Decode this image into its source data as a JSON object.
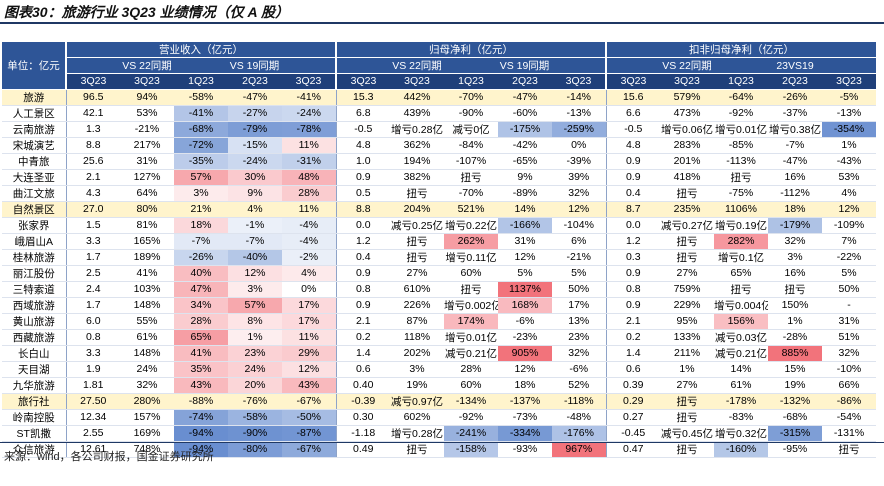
{
  "title": "图表30：旅游行业 3Q23 业绩情况（仅 A 股）",
  "header": {
    "unit": "单位：亿元",
    "groups": [
      "营业收入（亿元）",
      "归母净利（亿元）",
      "扣非归母净利（亿元）"
    ],
    "sub": [
      [
        "VS 22同期",
        "VS 19同期"
      ],
      [
        "VS 22同期",
        "VS 19同期"
      ],
      [
        "VS 22同期",
        "23VS19"
      ]
    ],
    "periods": [
      "3Q23",
      "3Q23",
      "1Q23",
      "2Q23",
      "3Q23",
      "3Q23",
      "3Q23",
      "1Q23",
      "2Q23",
      "3Q23",
      "3Q23",
      "3Q23",
      "1Q23",
      "2Q23",
      "3Q23"
    ]
  },
  "table": {
    "rows": [
      [
        "旅游",
        "96.5",
        "94%",
        "-58%",
        "-47%",
        "-41%",
        "15.3",
        "442%",
        "-70%",
        "-47%",
        "-14%",
        "15.6",
        "579%",
        "-64%",
        "-26%",
        "-5%"
      ],
      [
        "人工景区",
        "42.1",
        "53%",
        "-41%",
        "-27%",
        "-24%",
        "6.8",
        "439%",
        "-90%",
        "-60%",
        "-13%",
        "6.6",
        "473%",
        "-92%",
        "-37%",
        "-13%"
      ],
      [
        "云南旅游",
        "1.3",
        "-21%",
        "-68%",
        "-79%",
        "-78%",
        "-0.5",
        "增亏0.28亿",
        "减亏0亿",
        "-175%",
        "-259%",
        "-0.5",
        "增亏0.06亿",
        "增亏0.01亿",
        "增亏0.38亿",
        "-354%"
      ],
      [
        "宋城演艺",
        "8.8",
        "217%",
        "-72%",
        "-15%",
        "11%",
        "4.8",
        "362%",
        "-84%",
        "-42%",
        "0%",
        "4.8",
        "283%",
        "-85%",
        "-7%",
        "1%"
      ],
      [
        "中青旅",
        "25.6",
        "31%",
        "-35%",
        "-24%",
        "-31%",
        "1.0",
        "194%",
        "-107%",
        "-65%",
        "-39%",
        "0.9",
        "201%",
        "-113%",
        "-47%",
        "-43%"
      ],
      [
        "大连圣亚",
        "2.1",
        "127%",
        "57%",
        "30%",
        "48%",
        "0.9",
        "382%",
        "扭亏",
        "9%",
        "39%",
        "0.9",
        "418%",
        "扭亏",
        "16%",
        "53%"
      ],
      [
        "曲江文旅",
        "4.3",
        "64%",
        "3%",
        "9%",
        "28%",
        "0.5",
        "扭亏",
        "-70%",
        "-89%",
        "32%",
        "0.4",
        "扭亏",
        "-75%",
        "-112%",
        "4%"
      ],
      [
        "自然景区",
        "27.0",
        "80%",
        "21%",
        "4%",
        "11%",
        "8.8",
        "204%",
        "521%",
        "14%",
        "12%",
        "8.7",
        "235%",
        "1106%",
        "18%",
        "12%"
      ],
      [
        "张家界",
        "1.5",
        "81%",
        "18%",
        "-1%",
        "-4%",
        "0.0",
        "减亏0.25亿",
        "增亏0.22亿",
        "-166%",
        "-104%",
        "0.0",
        "减亏0.27亿",
        "增亏0.19亿",
        "-179%",
        "-109%"
      ],
      [
        "峨眉山A",
        "3.3",
        "165%",
        "-7%",
        "-7%",
        "-4%",
        "1.2",
        "扭亏",
        "262%",
        "31%",
        "6%",
        "1.2",
        "扭亏",
        "282%",
        "32%",
        "7%"
      ],
      [
        "桂林旅游",
        "1.7",
        "189%",
        "-26%",
        "-40%",
        "-2%",
        "0.4",
        "扭亏",
        "增亏0.11亿",
        "12%",
        "-21%",
        "0.3",
        "扭亏",
        "增亏0.1亿",
        "3%",
        "-22%"
      ],
      [
        "丽江股份",
        "2.5",
        "41%",
        "40%",
        "12%",
        "4%",
        "0.9",
        "27%",
        "60%",
        "5%",
        "5%",
        "0.9",
        "27%",
        "65%",
        "16%",
        "5%"
      ],
      [
        "三特索道",
        "2.4",
        "103%",
        "47%",
        "3%",
        "0%",
        "0.8",
        "610%",
        "扭亏",
        "1137%",
        "50%",
        "0.8",
        "759%",
        "扭亏",
        "扭亏",
        "50%"
      ],
      [
        "西域旅游",
        "1.7",
        "148%",
        "34%",
        "57%",
        "17%",
        "0.9",
        "226%",
        "增亏0.002亿",
        "168%",
        "17%",
        "0.9",
        "229%",
        "增亏0.004亿",
        "150%",
        "-"
      ],
      [
        "黄山旅游",
        "6.0",
        "55%",
        "28%",
        "8%",
        "17%",
        "2.1",
        "87%",
        "174%",
        "-6%",
        "13%",
        "2.1",
        "95%",
        "156%",
        "1%",
        "31%"
      ],
      [
        "西藏旅游",
        "0.8",
        "61%",
        "65%",
        "1%",
        "11%",
        "0.2",
        "118%",
        "增亏0.01亿",
        "-23%",
        "23%",
        "0.2",
        "133%",
        "减亏0.03亿",
        "-28%",
        "51%"
      ],
      [
        "长白山",
        "3.3",
        "148%",
        "41%",
        "23%",
        "29%",
        "1.4",
        "202%",
        "减亏0.21亿",
        "905%",
        "32%",
        "1.4",
        "211%",
        "减亏0.21亿",
        "885%",
        "32%"
      ],
      [
        "天目湖",
        "1.9",
        "24%",
        "35%",
        "24%",
        "12%",
        "0.6",
        "3%",
        "28%",
        "12%",
        "-6%",
        "0.6",
        "1%",
        "14%",
        "15%",
        "-10%"
      ],
      [
        "九华旅游",
        "1.81",
        "32%",
        "43%",
        "20%",
        "43%",
        "0.40",
        "19%",
        "60%",
        "18%",
        "52%",
        "0.39",
        "27%",
        "61%",
        "19%",
        "66%"
      ],
      [
        "旅行社",
        "27.50",
        "280%",
        "-88%",
        "-76%",
        "-67%",
        "-0.39",
        "减亏0.97亿",
        "-134%",
        "-137%",
        "-118%",
        "0.29",
        "扭亏",
        "-178%",
        "-132%",
        "-86%"
      ],
      [
        "岭南控股",
        "12.34",
        "157%",
        "-74%",
        "-58%",
        "-50%",
        "0.30",
        "602%",
        "-92%",
        "-73%",
        "-48%",
        "0.27",
        "扭亏",
        "-83%",
        "-68%",
        "-54%"
      ],
      [
        "ST凯撒",
        "2.55",
        "169%",
        "-94%",
        "-90%",
        "-87%",
        "-1.18",
        "增亏0.28亿",
        "-241%",
        "-334%",
        "-176%",
        "-0.45",
        "减亏0.45亿",
        "增亏0.32亿",
        "-315%",
        "-131%"
      ],
      [
        "众信旅游",
        "12.61",
        "748%",
        "-94%",
        "-80%",
        "-67%",
        "0.49",
        "扭亏",
        "-158%",
        "-93%",
        "967%",
        "0.47",
        "扭亏",
        "-160%",
        "-95%",
        "扭亏"
      ]
    ]
  },
  "footer": {
    "source": "来源：wind，各公司财报，国金证券研究所"
  }
}
